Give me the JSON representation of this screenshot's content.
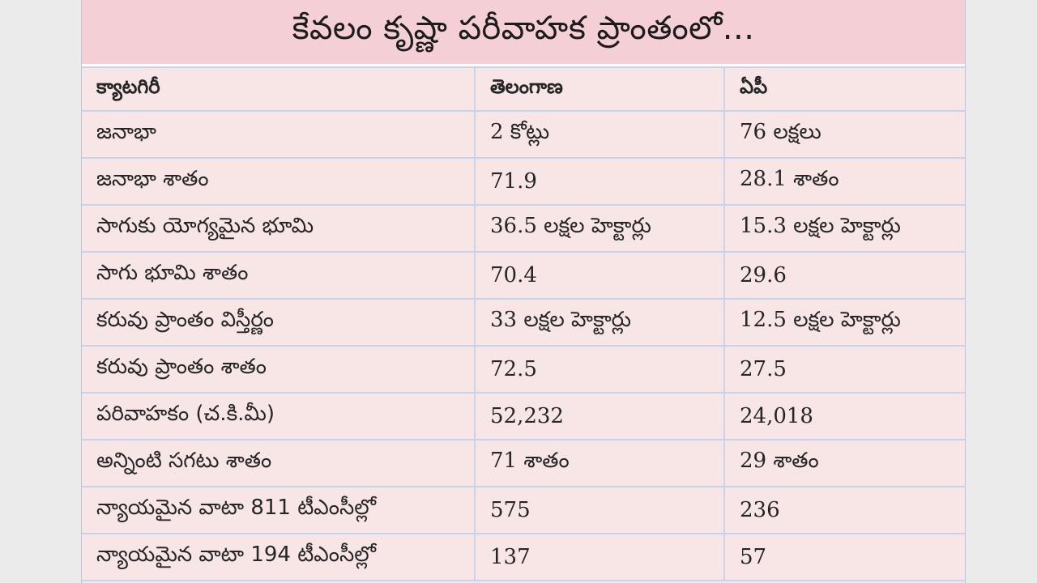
{
  "title": "కేవలం కృష్ణా పరీవాహక ప్రాంతంలో...",
  "table": {
    "headers": [
      "క్యాటగిరీ",
      "తెలంగాణ",
      "ఏపీ"
    ],
    "rows": [
      [
        "జనాభా",
        "2 కోట్లు",
        "76 లక్షలు"
      ],
      [
        "జనాభా శాతం",
        " 71.9",
        " 28.1 శాతం"
      ],
      [
        "సాగుకు యోగ్యమైన భూమి",
        "36.5 లక్షల హెక్టార్లు",
        "15.3 లక్షల హెక్టార్లు"
      ],
      [
        "సాగు భూమి శాతం",
        "70.4",
        "29.6"
      ],
      [
        "కరువు ప్రాంతం విస్తీర్ణం",
        "33 లక్షల హెక్టార్లు",
        "12.5 లక్షల హెక్టార్లు"
      ],
      [
        "కరువు ప్రాంతం శాతం",
        "72.5",
        "27.5"
      ],
      [
        "పరివాహకం (చ.కి.మీ)",
        "52,232",
        "24,018"
      ],
      [
        "అన్నింటి సగటు శాతం",
        "71 శాతం",
        "29 శాతం"
      ],
      [
        "న్యాయమైన వాటా 811 టీఎంసీల్లో",
        "575",
        " 236"
      ],
      [
        "న్యాయమైన వాటా 194 టీఎంసీల్లో",
        "137",
        "57"
      ]
    ]
  }
}
